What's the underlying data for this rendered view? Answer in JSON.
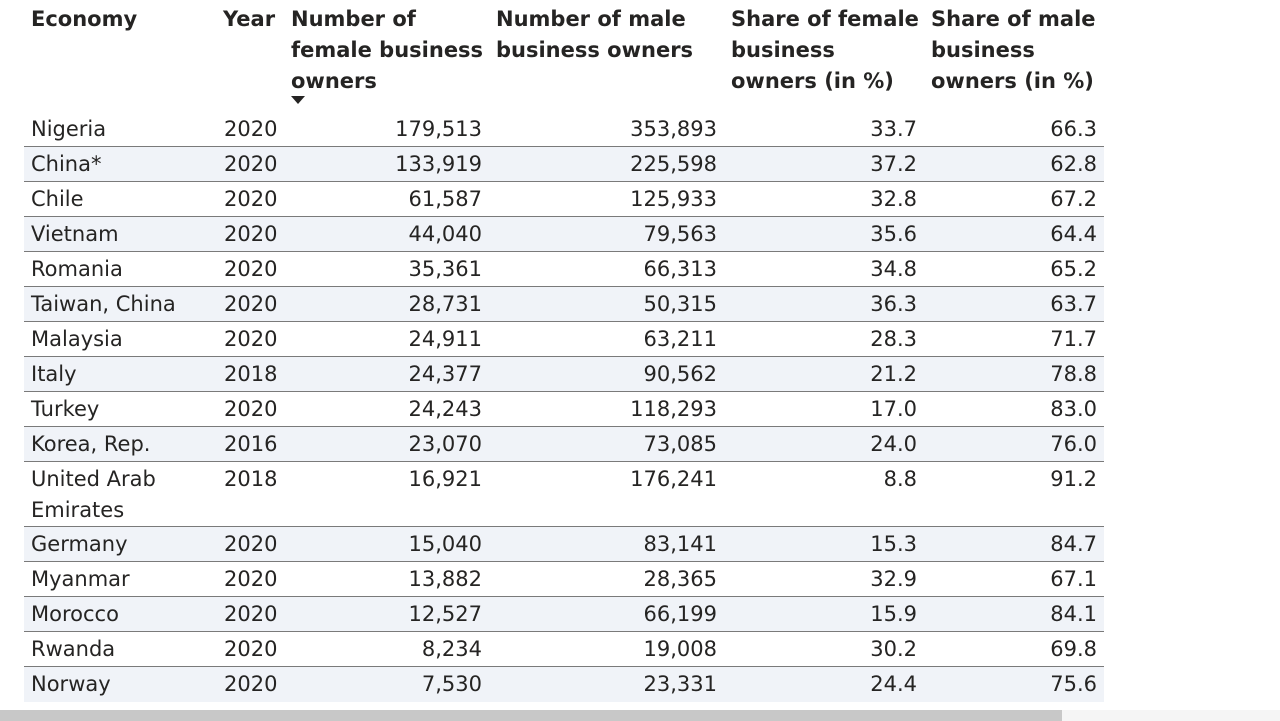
{
  "table": {
    "headers": {
      "economy": "Economy",
      "year": "Year",
      "female_count": [
        "Number of",
        "female business",
        "owners"
      ],
      "male_count": [
        "Number of male",
        "business owners"
      ],
      "female_share": [
        "Share of female",
        "business",
        "owners (in %)"
      ],
      "male_share": [
        "Share of male",
        "business",
        "owners (in %)"
      ]
    },
    "sort": {
      "column": "female_count",
      "direction": "descending",
      "icon": "sort-descending-icon"
    },
    "rows": [
      {
        "economy": "Nigeria",
        "year": "2020",
        "female": "179,513",
        "male": "353,893",
        "female_share": "33.7",
        "male_share": "66.3"
      },
      {
        "economy": "China*",
        "year": "2020",
        "female": "133,919",
        "male": "225,598",
        "female_share": "37.2",
        "male_share": "62.8"
      },
      {
        "economy": "Chile",
        "year": "2020",
        "female": "61,587",
        "male": "125,933",
        "female_share": "32.8",
        "male_share": "67.2"
      },
      {
        "economy": "Vietnam",
        "year": "2020",
        "female": "44,040",
        "male": "79,563",
        "female_share": "35.6",
        "male_share": "64.4"
      },
      {
        "economy": "Romania",
        "year": "2020",
        "female": "35,361",
        "male": "66,313",
        "female_share": "34.8",
        "male_share": "65.2"
      },
      {
        "economy": "Taiwan, China",
        "year": "2020",
        "female": "28,731",
        "male": "50,315",
        "female_share": "36.3",
        "male_share": "63.7"
      },
      {
        "economy": "Malaysia",
        "year": "2020",
        "female": "24,911",
        "male": "63,211",
        "female_share": "28.3",
        "male_share": "71.7"
      },
      {
        "economy": "Italy",
        "year": "2018",
        "female": "24,377",
        "male": "90,562",
        "female_share": "21.2",
        "male_share": "78.8"
      },
      {
        "economy": "Turkey",
        "year": "2020",
        "female": "24,243",
        "male": "118,293",
        "female_share": "17.0",
        "male_share": "83.0"
      },
      {
        "economy": "Korea, Rep.",
        "year": "2016",
        "female": "23,070",
        "male": "73,085",
        "female_share": "24.0",
        "male_share": "76.0"
      },
      {
        "economy": "United Arab Emirates",
        "year": "2018",
        "female": "16,921",
        "male": "176,241",
        "female_share": "8.8",
        "male_share": "91.2"
      },
      {
        "economy": "Germany",
        "year": "2020",
        "female": "15,040",
        "male": "83,141",
        "female_share": "15.3",
        "male_share": "84.7"
      },
      {
        "economy": "Myanmar",
        "year": "2020",
        "female": "13,882",
        "male": "28,365",
        "female_share": "32.9",
        "male_share": "67.1"
      },
      {
        "economy": "Morocco",
        "year": "2020",
        "female": "12,527",
        "male": "66,199",
        "female_share": "15.9",
        "male_share": "84.1"
      },
      {
        "economy": "Rwanda",
        "year": "2020",
        "female": "8,234",
        "male": "19,008",
        "female_share": "30.2",
        "male_share": "69.8"
      },
      {
        "economy": "Norway",
        "year": "2020",
        "female": "7,530",
        "male": "23,331",
        "female_share": "24.4",
        "male_share": "75.6"
      }
    ]
  },
  "colors": {
    "text": "#252423",
    "alt_row": "#f0f3f8",
    "divider": "#7a7a7a",
    "scroll_thumb": "#c8c8c8"
  }
}
